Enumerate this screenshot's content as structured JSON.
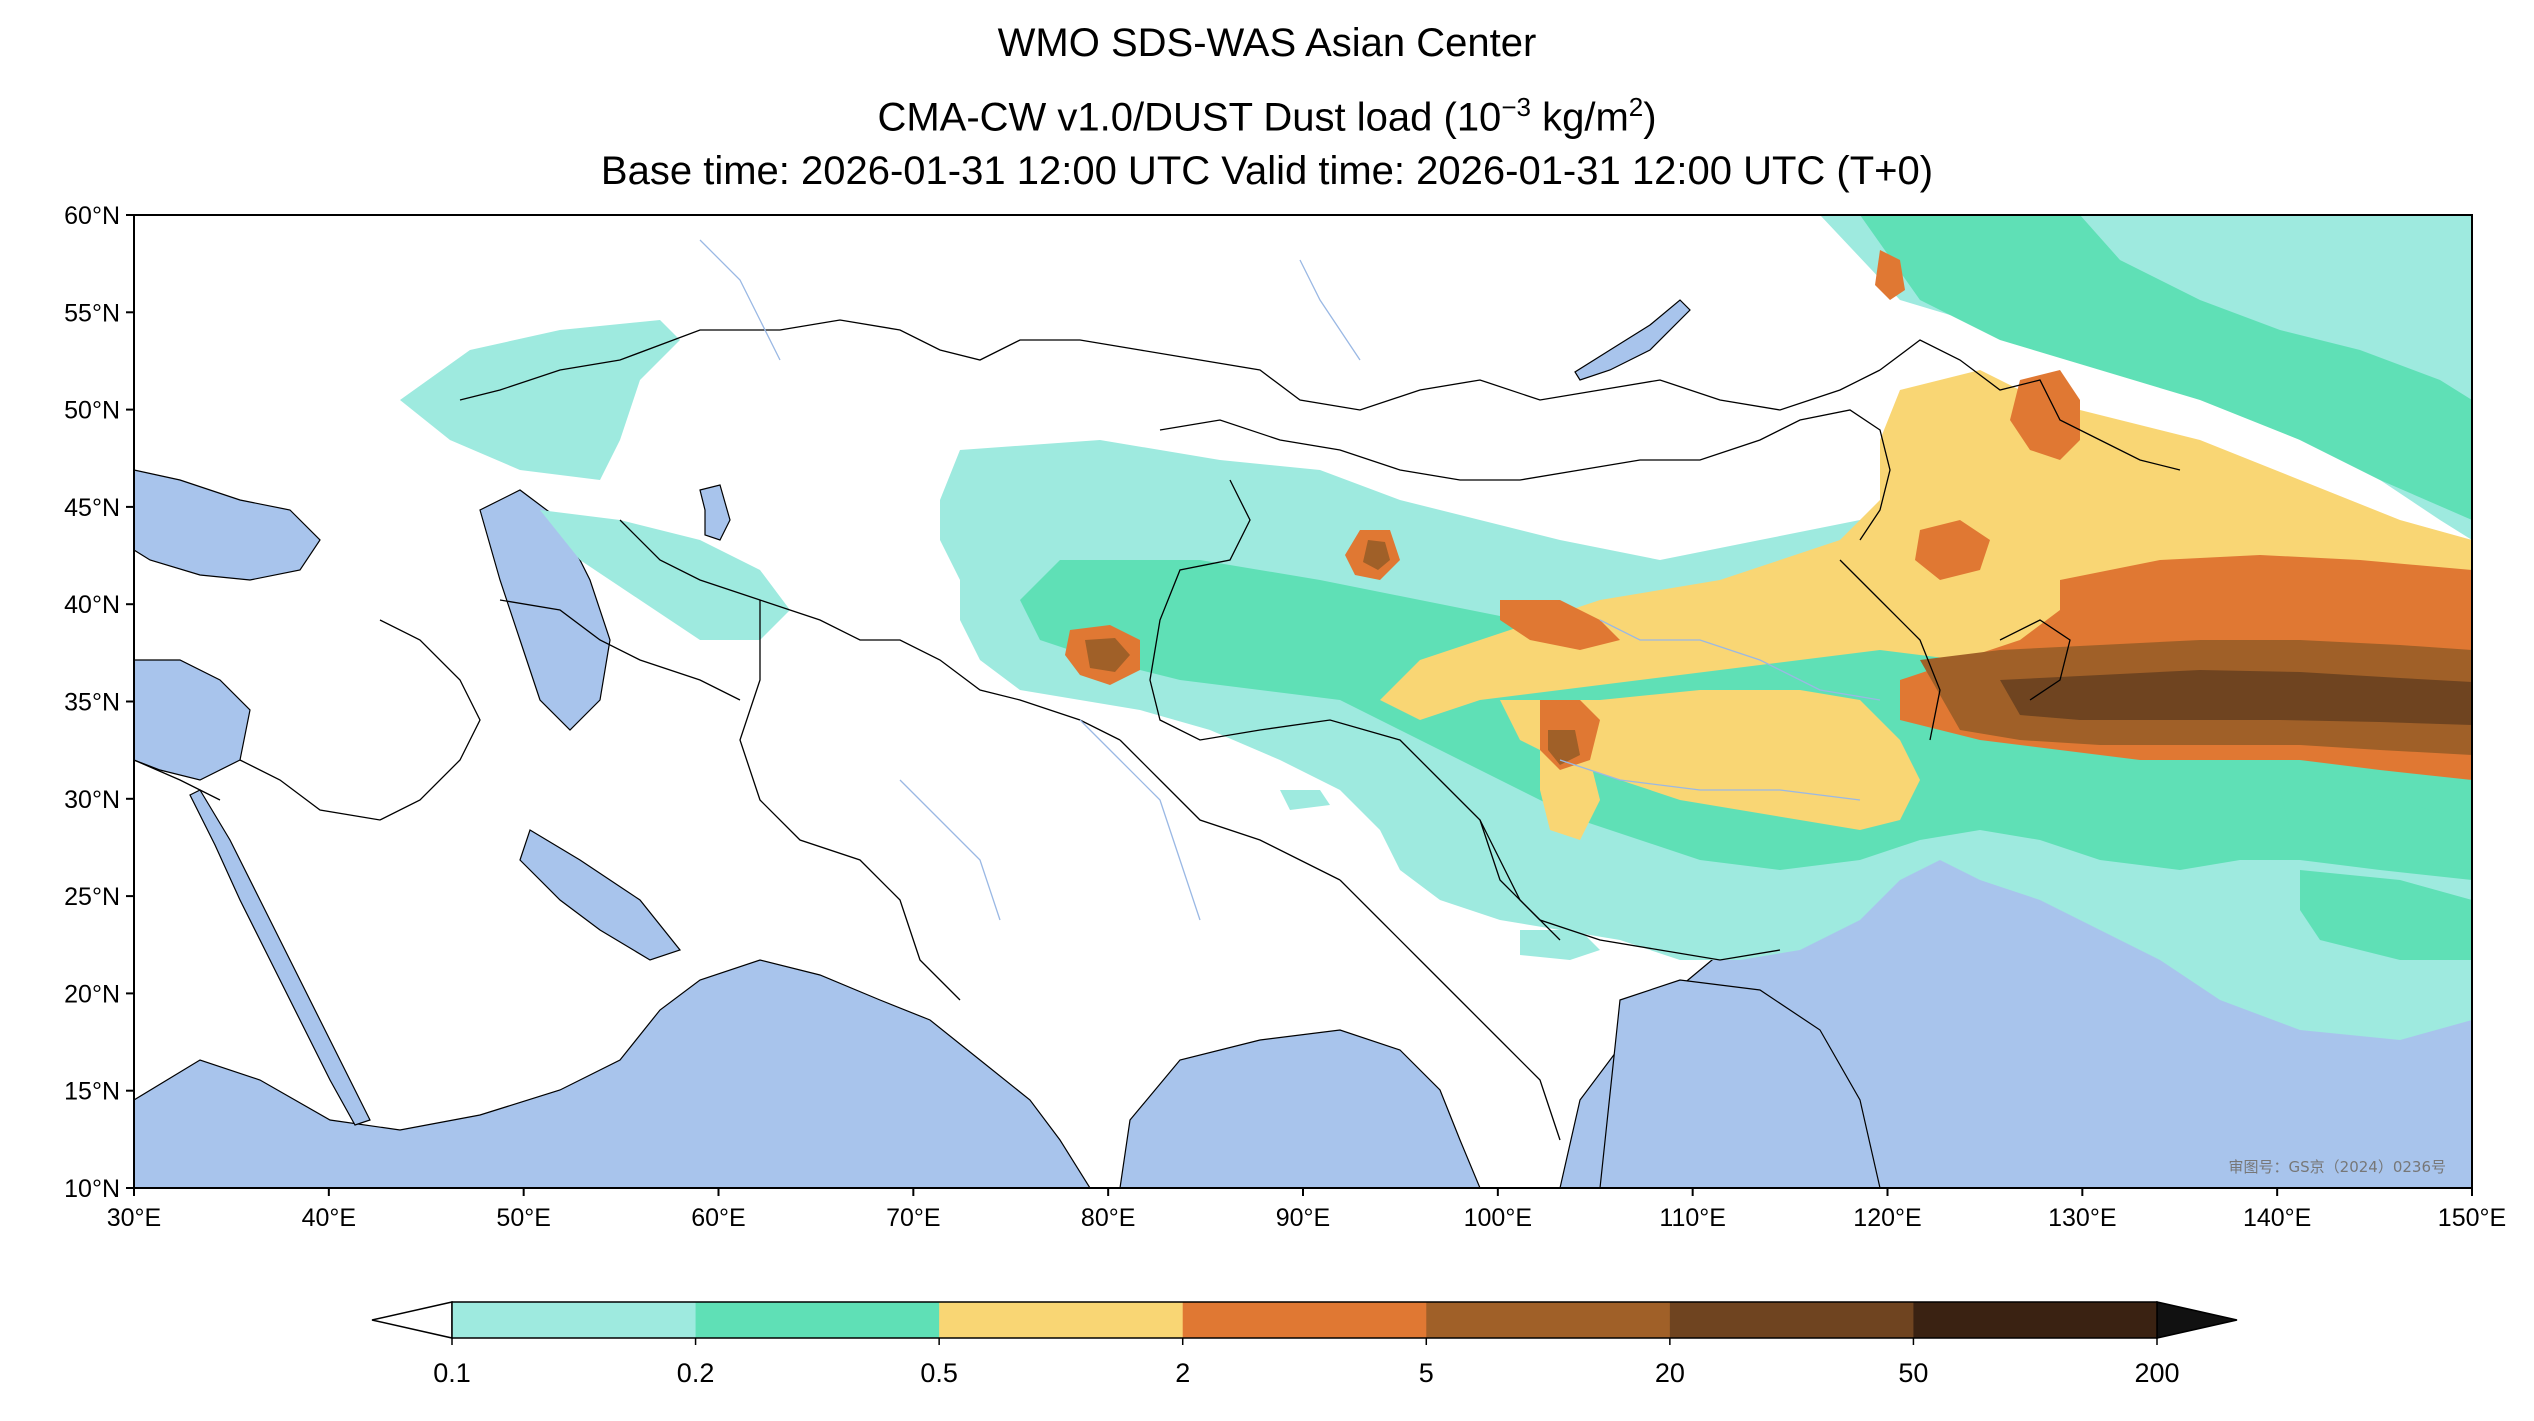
{
  "title": {
    "line1": "WMO SDS-WAS Asian Center",
    "line2_prefix": "CMA-CW v1.0/DUST Dust load (10",
    "line2_exp": "−3",
    "line2_mid": " kg/m",
    "line2_sq": "2",
    "line2_suffix": ")",
    "line3": "Base time: 2026-01-31 12:00 UTC Valid time: 2026-01-31 12:00 UTC (T+0)"
  },
  "map": {
    "lon_range": [
      30,
      150
    ],
    "lat_range": [
      10,
      60
    ],
    "lon_ticks": [
      "30°E",
      "40°E",
      "50°E",
      "60°E",
      "70°E",
      "80°E",
      "90°E",
      "100°E",
      "110°E",
      "120°E",
      "130°E",
      "140°E",
      "150°E"
    ],
    "lat_ticks": [
      "60°N",
      "55°N",
      "50°N",
      "45°N",
      "40°N",
      "35°N",
      "30°N",
      "25°N",
      "20°N",
      "15°N",
      "10°N"
    ],
    "ocean_color": "#a8c4ec",
    "land_color": "#ffffff",
    "approval_text": "审图号：GS京（2024）0236号"
  },
  "colorbar": {
    "labels": [
      "0.1",
      "0.2",
      "0.5",
      "2",
      "5",
      "20",
      "50",
      "200"
    ],
    "colors": [
      "#9eeadf",
      "#5fe0b6",
      "#f9d674",
      "#e07833",
      "#a06028",
      "#6f4420",
      "#3a2212"
    ],
    "extend_low_color": "#ffffff",
    "extend_high_color": "#111111"
  }
}
